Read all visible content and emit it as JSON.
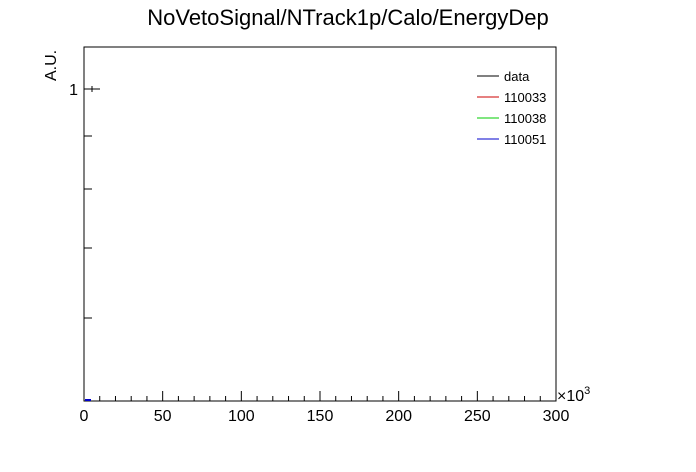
{
  "chart_data": {
    "type": "line",
    "title": "NoVetoSignal/NTrack1p/Calo/EnergyDep",
    "ylabel": "A.U.",
    "xlabel": "",
    "x_multiplier": "×10",
    "x_multiplier_exp": "3",
    "xlim": [
      0,
      300
    ],
    "y_scale": "log",
    "x_ticks": [
      0,
      50,
      100,
      150,
      200,
      250,
      300
    ],
    "y_tick_labels": [
      {
        "value": 1,
        "label": "1"
      }
    ],
    "legend": {
      "placement": "top-right",
      "entries": [
        {
          "name": "data",
          "color": "#000000"
        },
        {
          "name": "110033",
          "color": "#cc0000"
        },
        {
          "name": "110038",
          "color": "#00cc00"
        },
        {
          "name": "110051",
          "color": "#0000cc"
        }
      ]
    },
    "series": [
      {
        "name": "data",
        "color": "#000000",
        "x": [
          0
        ],
        "y": [
          1
        ]
      },
      {
        "name": "110051",
        "color": "#0000cc",
        "x": [
          0
        ],
        "y": [
          0
        ]
      }
    ],
    "grid": false
  }
}
